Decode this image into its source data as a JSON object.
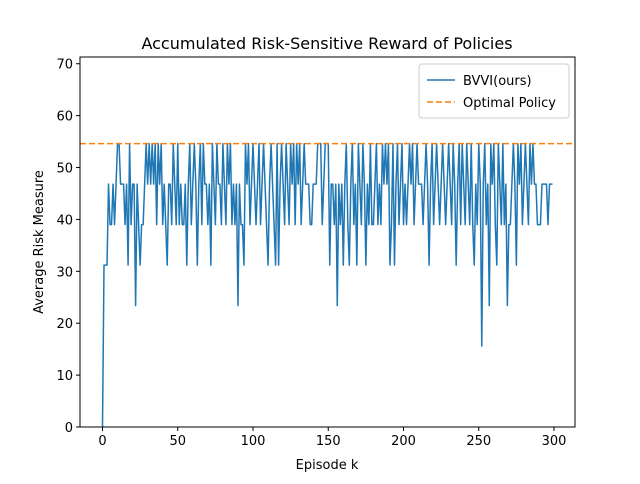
{
  "chart_data": {
    "type": "line",
    "title": "Accumulated Risk-Sensitive Reward of Policies",
    "x_label": "Episode k",
    "y_label": "Average Risk Measure",
    "x": [
      0,
      1,
      2,
      3,
      4,
      5,
      6,
      7,
      8,
      9,
      10,
      11,
      12,
      13,
      14,
      15,
      16,
      17,
      18,
      19,
      20,
      21,
      22,
      23,
      24,
      25,
      26,
      27,
      28,
      29,
      30,
      31,
      32,
      33,
      34,
      35,
      36,
      37,
      38,
      39,
      40,
      41,
      42,
      43,
      44,
      45,
      46,
      47,
      48,
      49,
      50,
      51,
      52,
      53,
      54,
      55,
      56,
      57,
      58,
      59,
      60,
      61,
      62,
      63,
      64,
      65,
      66,
      67,
      68,
      69,
      70,
      71,
      72,
      73,
      74,
      75,
      76,
      77,
      78,
      79,
      80,
      81,
      82,
      83,
      84,
      85,
      86,
      87,
      88,
      89,
      90,
      91,
      92,
      93,
      94,
      95,
      96,
      97,
      98,
      99,
      100,
      101,
      102,
      103,
      104,
      105,
      106,
      107,
      108,
      109,
      110,
      111,
      112,
      113,
      114,
      115,
      116,
      117,
      118,
      119,
      120,
      121,
      122,
      123,
      124,
      125,
      126,
      127,
      128,
      129,
      130,
      131,
      132,
      133,
      134,
      135,
      136,
      137,
      138,
      139,
      140,
      141,
      142,
      143,
      144,
      145,
      146,
      147,
      148,
      149,
      150,
      151,
      152,
      153,
      154,
      155,
      156,
      157,
      158,
      159,
      160,
      161,
      162,
      163,
      164,
      165,
      166,
      167,
      168,
      169,
      170,
      171,
      172,
      173,
      174,
      175,
      176,
      177,
      178,
      179,
      180,
      181,
      182,
      183,
      184,
      185,
      186,
      187,
      188,
      189,
      190,
      191,
      192,
      193,
      194,
      195,
      196,
      197,
      198,
      199,
      200,
      201,
      202,
      203,
      204,
      205,
      206,
      207,
      208,
      209,
      210,
      211,
      212,
      213,
      214,
      215,
      216,
      217,
      218,
      219,
      220,
      221,
      222,
      223,
      224,
      225,
      226,
      227,
      228,
      229,
      230,
      231,
      232,
      233,
      234,
      235,
      236,
      237,
      238,
      239,
      240,
      241,
      242,
      243,
      244,
      245,
      246,
      247,
      248,
      249,
      250,
      251,
      252,
      253,
      254,
      255,
      256,
      257,
      258,
      259,
      260,
      261,
      262,
      263,
      264,
      265,
      266,
      267,
      268,
      269,
      270,
      271,
      272,
      273,
      274,
      275,
      276,
      277,
      278,
      279,
      280,
      281,
      282,
      283,
      284,
      285,
      286,
      287,
      288,
      289,
      290,
      291,
      292,
      293,
      294,
      295,
      296,
      297,
      298,
      299
    ],
    "series": [
      {
        "name": "BVVI(ours)",
        "color": "#1f77b4",
        "values": [
          0,
          31.2,
          31.2,
          31.2,
          46.8,
          39,
          39,
          46.8,
          39,
          46.8,
          54.6,
          54.6,
          46.8,
          46.8,
          46.8,
          39,
          46.8,
          31.2,
          54.6,
          39,
          46.8,
          46.8,
          23.4,
          46.8,
          39,
          31.2,
          39,
          39,
          46.8,
          54.6,
          46.8,
          54.6,
          46.8,
          54.6,
          46.8,
          54.6,
          39,
          54.6,
          46.8,
          54.6,
          39,
          46.8,
          39,
          31.2,
          46.8,
          46.8,
          39,
          54.6,
          46.8,
          39,
          54.6,
          39,
          46.8,
          39,
          39,
          46.8,
          31.2,
          46.8,
          54.6,
          39,
          46.8,
          54.6,
          46.8,
          31.2,
          46.8,
          54.6,
          39,
          54.6,
          46.8,
          46.8,
          39,
          46.8,
          31.2,
          54.6,
          46.8,
          39,
          54.6,
          46.8,
          46.8,
          39,
          54.6,
          46.8,
          39,
          54.6,
          46.8,
          54.6,
          39,
          46.8,
          39,
          46.8,
          23.4,
          46.8,
          39,
          39,
          31.2,
          54.6,
          46.8,
          54.6,
          39,
          46.8,
          54.6,
          46.8,
          39,
          46.8,
          54.6,
          39,
          46.8,
          54.6,
          46.8,
          39,
          31.2,
          46.8,
          54.6,
          46.8,
          39,
          31.2,
          54.6,
          31.2,
          46.8,
          54.6,
          46.8,
          39,
          54.6,
          46.8,
          39,
          54.6,
          46.8,
          54.6,
          39,
          54.6,
          46.8,
          54.6,
          39,
          46.8,
          54.6,
          46.8,
          46.8,
          46.8,
          39,
          39,
          46.8,
          46.8,
          46.8,
          54.6,
          54.6,
          54.6,
          39,
          46.8,
          54.6,
          54.6,
          54.6,
          31.2,
          46.8,
          46.8,
          39,
          46.8,
          23.4,
          46.8,
          39,
          46.8,
          31.2,
          46.8,
          54.6,
          39,
          31.2,
          46.8,
          54.6,
          39,
          46.8,
          31.2,
          54.6,
          46.8,
          39,
          54.6,
          46.8,
          31.2,
          46.8,
          39,
          54.6,
          39,
          39,
          46.8,
          54.6,
          39,
          46.8,
          39,
          54.6,
          46.8,
          54.6,
          46.8,
          54.6,
          31.2,
          39,
          54.6,
          31.2,
          46.8,
          54.6,
          39,
          46.8,
          54.6,
          39,
          46.8,
          39,
          46.8,
          54.6,
          46.8,
          54.6,
          39,
          46.8,
          54.6,
          46.8,
          46.8,
          46.8,
          39,
          46.8,
          54.6,
          46.8,
          31.2,
          46.8,
          54.6,
          39,
          46.8,
          54.6,
          46.8,
          39,
          46.8,
          54.6,
          46.8,
          39,
          46.8,
          54.6,
          46.8,
          39,
          54.6,
          46.8,
          31.2,
          46.8,
          54.6,
          39,
          54.6,
          46.8,
          39,
          54.6,
          46.8,
          39,
          54.6,
          39,
          31.2,
          46.8,
          39,
          54.6,
          46.8,
          15.6,
          46.8,
          54.6,
          39,
          46.8,
          23.4,
          54.6,
          46.8,
          54.6,
          39,
          31.2,
          54.6,
          46.8,
          39,
          54.6,
          39,
          46.8,
          23.4,
          39,
          39,
          46.8,
          54.6,
          46.8,
          31.2,
          54.6,
          46.8,
          54.6,
          39,
          46.8,
          54.6,
          46.8,
          39,
          54.6,
          46.8,
          54.6,
          46.8,
          46.8,
          39,
          39,
          39,
          46.8,
          46.8,
          46.8,
          46.8,
          39,
          46.8,
          46.8,
          46.8
        ]
      }
    ],
    "reference_lines": [
      {
        "name": "Optimal Policy",
        "color": "#ff7f0e",
        "value": 54.6,
        "dashed": true
      }
    ],
    "xlim": [
      -14.95,
      313.95
    ],
    "xticks": [
      0,
      50,
      100,
      150,
      200,
      250,
      300
    ],
    "ylim": [
      0,
      71.3
    ],
    "yticks": [
      0,
      10,
      20,
      30,
      40,
      50,
      60,
      70
    ],
    "legend": "upper right"
  }
}
